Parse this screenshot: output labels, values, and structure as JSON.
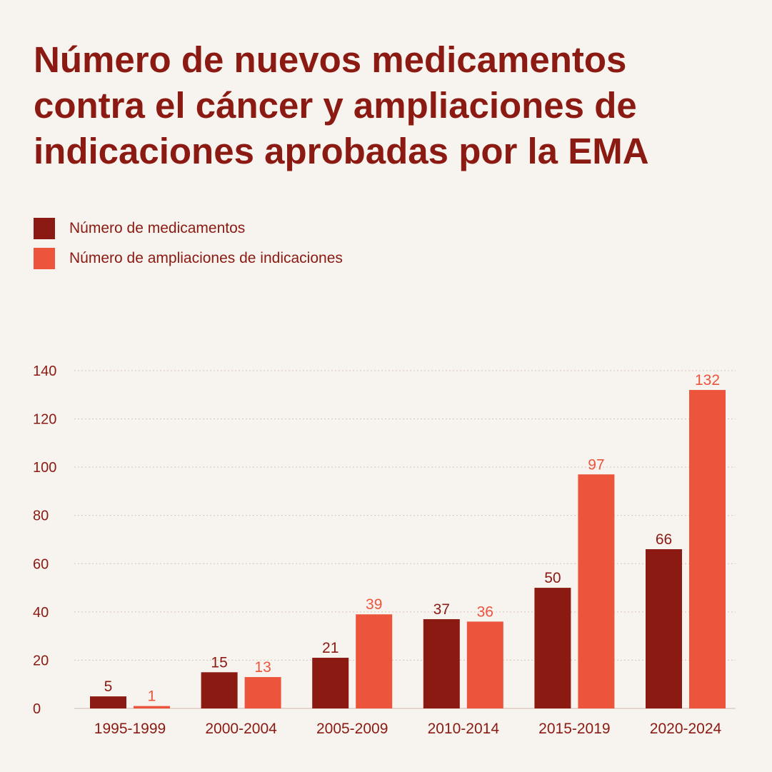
{
  "title": "Número de nuevos medicamentos contra el cáncer y ampliaciones de indicaciones aprobadas por la EMA",
  "colors": {
    "background": "#f7f3ef",
    "text": "#8b1a12",
    "medicamentos": "#8b1a12",
    "ampliaciones": "#ec553c",
    "grid": "#d8c4b6"
  },
  "legend": [
    {
      "label": "Número de medicamentos",
      "color": "#8b1a12"
    },
    {
      "label": "Número de ampliaciones de indicaciones",
      "color": "#ec553c"
    }
  ],
  "chart_data": {
    "type": "bar",
    "title": "Número de nuevos medicamentos contra el cáncer y ampliaciones de indicaciones aprobadas por la EMA",
    "xlabel": "",
    "ylabel": "",
    "categories": [
      "1995-1999",
      "2000-2004",
      "2005-2009",
      "2010-2014",
      "2015-2019",
      "2020-2024"
    ],
    "series": [
      {
        "name": "Número de medicamentos",
        "values": [
          5,
          15,
          21,
          37,
          50,
          66
        ],
        "color": "#8b1a12"
      },
      {
        "name": "Número de ampliaciones de indicaciones",
        "values": [
          1,
          13,
          39,
          36,
          97,
          132
        ],
        "color": "#ec553c"
      }
    ],
    "ylim": [
      0,
      140
    ],
    "yticks": [
      0,
      20,
      40,
      60,
      80,
      100,
      120,
      140
    ],
    "grid": true,
    "legend_position": "top-left",
    "data_labels": true
  }
}
